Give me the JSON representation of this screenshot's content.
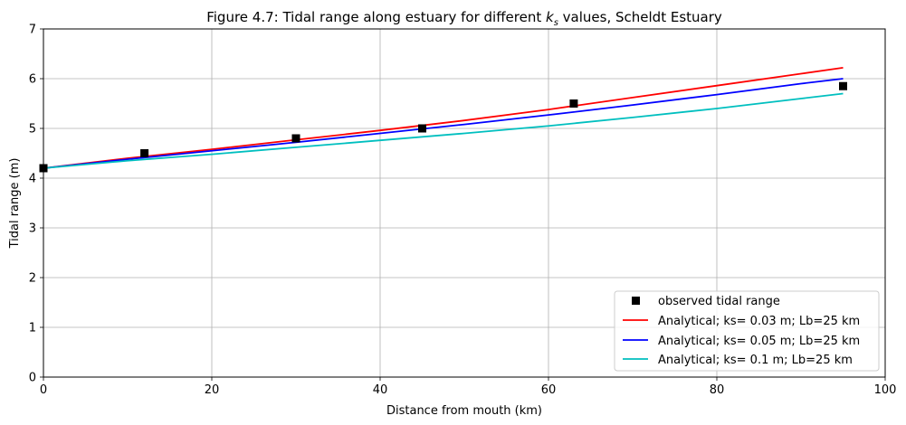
{
  "chart_data": {
    "type": "line",
    "title_prefix": "Figure 4.7: Tidal range along estuary for different ",
    "title_math_base": "k",
    "title_math_sub": "s",
    "title_suffix": " values, Scheldt Estuary",
    "xlabel": "Distance from mouth (km)",
    "ylabel": "Tidal range (m)",
    "xlim": [
      0,
      100
    ],
    "ylim": [
      0,
      7
    ],
    "xticks": [
      0,
      20,
      40,
      60,
      80,
      100
    ],
    "yticks": [
      0,
      1,
      2,
      3,
      4,
      5,
      6,
      7
    ],
    "grid": true,
    "legend_position": "bottom-right",
    "observed": {
      "name": "observed tidal range",
      "color": "#000000",
      "marker": "square",
      "x": [
        0,
        12,
        30,
        45,
        63,
        95
      ],
      "y": [
        4.2,
        4.5,
        4.8,
        5.0,
        5.5,
        5.85
      ]
    },
    "series": [
      {
        "name": "Analytical; ks= 0.03 m; Lb=25 km",
        "color": "#ff0000",
        "x": [
          0,
          10,
          20,
          30,
          40,
          50,
          60,
          70,
          80,
          90,
          95
        ],
        "y": [
          4.2,
          4.4,
          4.58,
          4.77,
          4.96,
          5.16,
          5.38,
          5.62,
          5.86,
          6.1,
          6.22
        ]
      },
      {
        "name": "Analytical; ks= 0.05 m; Lb=25 km",
        "color": "#0000ff",
        "x": [
          0,
          10,
          20,
          30,
          40,
          50,
          60,
          70,
          80,
          90,
          95
        ],
        "y": [
          4.2,
          4.38,
          4.55,
          4.72,
          4.9,
          5.08,
          5.27,
          5.47,
          5.68,
          5.9,
          6.0
        ]
      },
      {
        "name": "Analytical; ks= 0.1 m; Lb=25 km",
        "color": "#00bfbf",
        "x": [
          0,
          10,
          20,
          30,
          40,
          50,
          60,
          70,
          80,
          90,
          95
        ],
        "y": [
          4.2,
          4.35,
          4.48,
          4.62,
          4.76,
          4.9,
          5.05,
          5.22,
          5.4,
          5.6,
          5.7
        ]
      }
    ]
  }
}
